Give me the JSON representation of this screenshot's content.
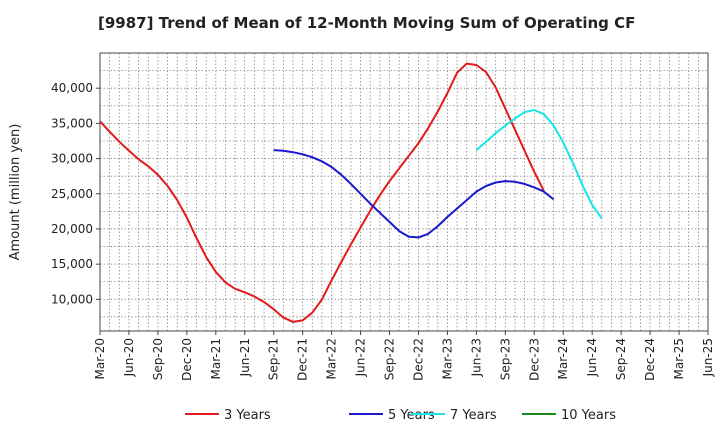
{
  "chart_data": {
    "type": "line",
    "title": "[9987]  Trend of Mean of 12-Month Moving Sum of Operating CF",
    "xlabel": "",
    "ylabel": "Amount (million yen)",
    "ylim": [
      5500,
      45000
    ],
    "yticks": [
      10000,
      15000,
      20000,
      25000,
      30000,
      35000,
      40000
    ],
    "ytick_labels": [
      "10,000",
      "15,000",
      "20,000",
      "25,000",
      "30,000",
      "35,000",
      "40,000"
    ],
    "xticks": [
      "Mar-20",
      "Jun-20",
      "Sep-20",
      "Dec-20",
      "Mar-21",
      "Jun-21",
      "Sep-21",
      "Dec-21",
      "Mar-22",
      "Jun-22",
      "Sep-22",
      "Dec-22",
      "Mar-23",
      "Jun-23",
      "Sep-23",
      "Dec-23",
      "Mar-24",
      "Jun-24",
      "Sep-24",
      "Dec-24",
      "Mar-25",
      "Jun-25"
    ],
    "grid": true,
    "legend_position": "bottom",
    "series": [
      {
        "name": "3 Years",
        "color": "#e31a1c",
        "start_index": 0,
        "values": [
          35300,
          33800,
          32400,
          31100,
          29900,
          28900,
          27700,
          26100,
          24100,
          21600,
          18700,
          16000,
          13900,
          12400,
          11500,
          11000,
          10400,
          9600,
          8600,
          7400,
          6800,
          7000,
          8100,
          10000,
          12700,
          15300,
          17800,
          20200,
          22600,
          24800,
          26800,
          28600,
          30400,
          32200,
          34300,
          36700,
          39300,
          42200,
          43500,
          43300,
          42300,
          40100,
          37100,
          34100,
          31100,
          28100,
          25400
        ]
      },
      {
        "name": "5 Years",
        "color": "#1a1acd",
        "start_index": 18,
        "values": [
          31200,
          31100,
          30900,
          30600,
          30200,
          29600,
          28800,
          27700,
          26400,
          25000,
          23600,
          22300,
          21000,
          19700,
          18900,
          18800,
          19300,
          20400,
          21700,
          22900,
          24100,
          25300,
          26100,
          26600,
          26800,
          26700,
          26400,
          25900,
          25300,
          24200
        ]
      },
      {
        "name": "7 Years",
        "color": "#19e6e6",
        "start_index": 39,
        "values": [
          31200,
          32400,
          33600,
          34700,
          35700,
          36600,
          36900,
          36300,
          34700,
          32300,
          29400,
          26200,
          23400,
          21500
        ]
      },
      {
        "name": "10 Years",
        "color": "#1a8a1a",
        "start_index": 0,
        "values": []
      }
    ]
  }
}
